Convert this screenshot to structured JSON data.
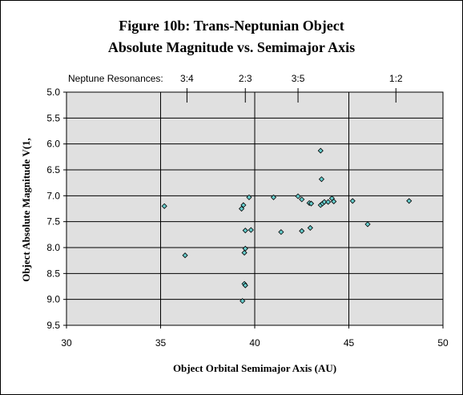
{
  "chart_data": {
    "type": "scatter",
    "title": "Figure 10b:  Trans-Neptunian Object",
    "subtitle": "Absolute Magnitude vs. Semimajor Axis",
    "xlabel": "Object Orbital Semimajor Axis (AU)",
    "ylabel": "Object Absolute Magnitude V(1,",
    "xlim": [
      30,
      50
    ],
    "ylim": [
      5.0,
      9.5
    ],
    "y_inverted": true,
    "x_ticks": [
      30,
      35,
      40,
      45,
      50
    ],
    "y_ticks": [
      5.0,
      5.5,
      6.0,
      6.5,
      7.0,
      7.5,
      8.0,
      8.5,
      9.0,
      9.5
    ],
    "grid": "vertical and horizontal major",
    "plot_background": "#e0e0e0",
    "marker_color": "#66cccc",
    "resonance_label": "Neptune Resonances:",
    "resonances": [
      {
        "label": "3:4",
        "x": 36.4
      },
      {
        "label": "2:3",
        "x": 39.5
      },
      {
        "label": "3:5",
        "x": 42.3
      },
      {
        "label": "1:2",
        "x": 47.5
      }
    ],
    "points": [
      {
        "x": 35.2,
        "y": 7.2
      },
      {
        "x": 36.3,
        "y": 8.15
      },
      {
        "x": 39.3,
        "y": 7.25
      },
      {
        "x": 39.4,
        "y": 7.18
      },
      {
        "x": 39.7,
        "y": 7.03
      },
      {
        "x": 39.5,
        "y": 7.67
      },
      {
        "x": 39.8,
        "y": 7.66
      },
      {
        "x": 39.5,
        "y": 8.02
      },
      {
        "x": 39.45,
        "y": 8.1
      },
      {
        "x": 39.45,
        "y": 8.7
      },
      {
        "x": 39.5,
        "y": 8.73
      },
      {
        "x": 39.35,
        "y": 9.03
      },
      {
        "x": 41.0,
        "y": 7.03
      },
      {
        "x": 41.4,
        "y": 7.7
      },
      {
        "x": 42.3,
        "y": 7.01
      },
      {
        "x": 42.5,
        "y": 7.07
      },
      {
        "x": 42.5,
        "y": 7.68
      },
      {
        "x": 42.9,
        "y": 7.14
      },
      {
        "x": 43.0,
        "y": 7.15
      },
      {
        "x": 42.95,
        "y": 7.62
      },
      {
        "x": 43.5,
        "y": 6.13
      },
      {
        "x": 43.55,
        "y": 6.68
      },
      {
        "x": 43.5,
        "y": 7.18
      },
      {
        "x": 43.6,
        "y": 7.15
      },
      {
        "x": 43.7,
        "y": 7.12
      },
      {
        "x": 43.9,
        "y": 7.12
      },
      {
        "x": 44.1,
        "y": 7.05
      },
      {
        "x": 44.2,
        "y": 7.11
      },
      {
        "x": 45.2,
        "y": 7.1
      },
      {
        "x": 46.0,
        "y": 7.55
      },
      {
        "x": 48.2,
        "y": 7.1
      }
    ]
  }
}
